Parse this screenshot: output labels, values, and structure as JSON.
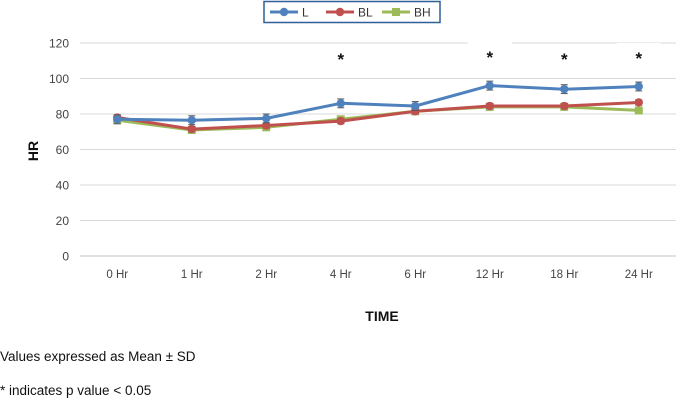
{
  "chart_data": {
    "type": "line",
    "title": "",
    "xlabel": "TIME",
    "ylabel": "HR",
    "ylim": [
      0,
      120
    ],
    "yticks": [
      0,
      20,
      40,
      60,
      80,
      100,
      120
    ],
    "grid": true,
    "legend_position": "top-center",
    "categories": [
      "0 Hr",
      "1 Hr",
      "2 Hr",
      "4 Hr",
      "6 Hr",
      "12 Hr",
      "18 Hr",
      "24 Hr"
    ],
    "series": [
      {
        "name": "L",
        "color": "#4F81BD",
        "marker": "circle",
        "values": [
          77,
          76.5,
          77.5,
          86,
          84.5,
          96,
          94,
          95.5
        ],
        "error": [
          2.5,
          2.5,
          2.5,
          2.5,
          2.5,
          2.5,
          2.5,
          2.5
        ]
      },
      {
        "name": "BL",
        "color": "#C0504D",
        "marker": "circle",
        "values": [
          78,
          71.5,
          73.5,
          76,
          81.5,
          84.5,
          84.5,
          86.5
        ],
        "error": [
          1.5,
          1.5,
          1.5,
          1.5,
          1.5,
          1.5,
          1.5,
          1.5
        ]
      },
      {
        "name": "BH",
        "color": "#9BBB59",
        "marker": "square",
        "values": [
          76.5,
          71,
          72.5,
          77,
          81.5,
          84,
          84,
          82
        ],
        "error": [
          1.5,
          1.5,
          1.5,
          1.5,
          1.5,
          1.5,
          1.5,
          1.5
        ]
      }
    ],
    "annotations": [
      {
        "category": "4 Hr",
        "text": "*"
      },
      {
        "category": "12 Hr",
        "text": "*"
      },
      {
        "category": "18 Hr",
        "text": "*"
      },
      {
        "category": "24 Hr",
        "text": "*"
      }
    ]
  },
  "notes": {
    "line1": "Values expressed as Mean ± SD",
    "line2": "* indicates p value < 0.05"
  }
}
